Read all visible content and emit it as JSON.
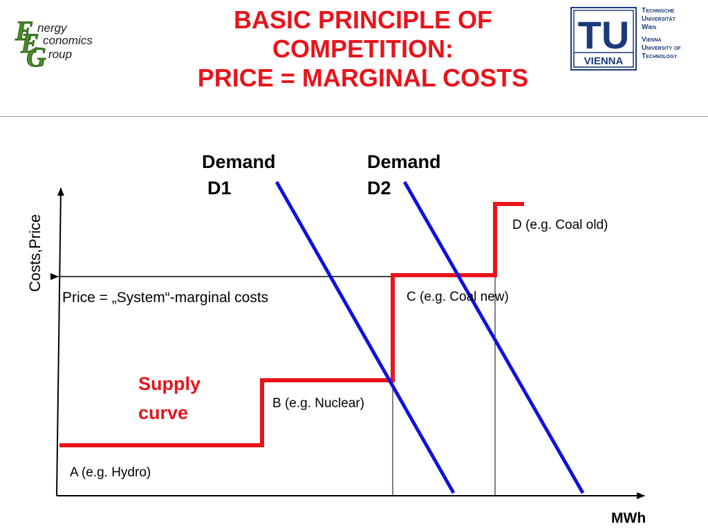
{
  "header": {
    "title_lines": [
      "BASIC PRINCIPLE OF",
      "COMPETITION:",
      "PRICE = MARGINAL COSTS"
    ],
    "left_logo": {
      "line1": "nergy",
      "line2": "conomics",
      "line3": "roup",
      "letters": [
        "E",
        "E",
        "G"
      ]
    },
    "right_logo": {
      "mark": "TU",
      "mark_sub": "VIENNA",
      "text_lines": [
        "Technische",
        "Universität",
        "Wien",
        "Vienna",
        "University of",
        "Technology"
      ]
    },
    "colors": {
      "title": "#e8141b",
      "logo_green": "#4a8a2a",
      "tu_blue": "#1a3a7a"
    }
  },
  "diagram": {
    "demand1": {
      "label_line1": "Demand",
      "label_line2": "D1",
      "color": "#1010e0"
    },
    "demand2": {
      "label_line1": "Demand",
      "label_line2": "D2",
      "color": "#1010e0"
    },
    "supply": {
      "label_line1": "Supply",
      "label_line2": "curve",
      "color": "#e8141b"
    },
    "steps": {
      "A": "A (e.g. Hydro)",
      "B": "B (e.g. Nuclear)",
      "C": "C (e.g. Coal new)",
      "D": "D (e.g. Coal old)"
    },
    "price_label": "Price  = „System“-marginal costs",
    "y_axis": "Costs,Price",
    "x_axis": "MWh"
  }
}
